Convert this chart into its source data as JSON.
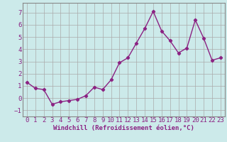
{
  "x": [
    0,
    1,
    2,
    3,
    4,
    5,
    6,
    7,
    8,
    9,
    10,
    11,
    12,
    13,
    14,
    15,
    16,
    17,
    18,
    19,
    20,
    21,
    22,
    23
  ],
  "y": [
    1.3,
    0.8,
    0.7,
    -0.5,
    -0.3,
    -0.2,
    -0.1,
    0.2,
    0.9,
    0.7,
    1.5,
    2.9,
    3.3,
    4.5,
    5.7,
    7.1,
    5.5,
    4.7,
    3.7,
    4.1,
    6.4,
    4.9,
    3.1,
    3.3
  ],
  "line_color": "#8b2283",
  "marker": "D",
  "marker_size": 2.2,
  "line_width": 1.0,
  "bg_color": "#cceaea",
  "grid_color": "#aaaaaa",
  "xlabel": "Windchill (Refroidissement éolien,°C)",
  "ylim": [
    -1.5,
    7.8
  ],
  "yticks": [
    -1,
    0,
    1,
    2,
    3,
    4,
    5,
    6,
    7
  ],
  "xticks": [
    0,
    1,
    2,
    3,
    4,
    5,
    6,
    7,
    8,
    9,
    10,
    11,
    12,
    13,
    14,
    15,
    16,
    17,
    18,
    19,
    20,
    21,
    22,
    23
  ],
  "xlabel_fontsize": 6.5,
  "tick_fontsize": 6.5,
  "tick_color": "#8b2283",
  "xlabel_color": "#8b2283"
}
